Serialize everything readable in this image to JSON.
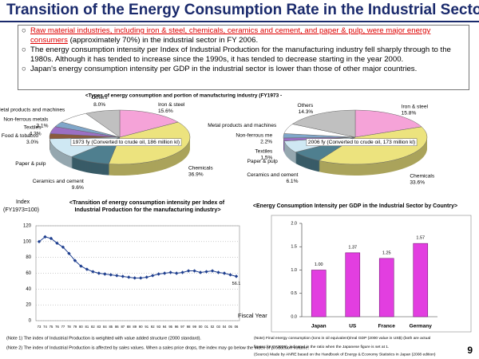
{
  "title": "Transition of the Energy Consumption Rate in the Industrial Sector",
  "bullets": [
    {
      "highlight": "Raw material industries, including iron & steel, chemicals, ceramics and cement, and paper & pulp, were major energy consumers",
      "text": " (approximately 70%) in the industrial sector in FY 2006."
    },
    {
      "text": "The energy consumption intensity per Index of Industrial Production for the manufacturing industry fell sharply through to the 1980s. Although it has tended to increase since the 1990s, it has tended to decrease starting in the year 2000."
    },
    {
      "text": "Japan's energy consumption intensity per GDP in the industrial sector is lower than those of other major countries."
    }
  ],
  "chart_data": [
    {
      "type": "pie",
      "title": "<Types of energy consumption and portion of manufacturing industry (FY1973 -",
      "center_label": "1973 fy (Converted to crude oil, 186 million kl)",
      "categories": [
        "Iron & steel",
        "Chemicals",
        "Ceramics and cement",
        "Paper & pulp",
        "Food & tobacco",
        "Textiles",
        "Non-ferrous metals",
        "Metal products and machines",
        "Others"
      ],
      "values": [
        15.6,
        36.9,
        9.6,
        12.0,
        3.0,
        4.3,
        3.1,
        7.5,
        8.0
      ],
      "value_labels": [
        "15.6%",
        "36.9%",
        "9.6%",
        null,
        "3.0%",
        "4.3%",
        "3.1%",
        null,
        "8.0%"
      ],
      "colors": [
        "#f5a3d8",
        "#ece37e",
        "#4f7f8f",
        "#cfe8f3",
        "#8a5a3c",
        "#9b6fc4",
        "#7fa6c9",
        "#ffffff",
        "#c0c0c0"
      ]
    },
    {
      "type": "pie",
      "center_label": "2006 fy (Converted to crude oil, 173 million kl)",
      "categories": [
        "Iron & steel",
        "Chemicals",
        "Ceramics and cement",
        "Paper & pulp",
        "Textiles",
        "Non-ferrous me",
        "Metal products and machines",
        "Others"
      ],
      "values": [
        15.8,
        33.6,
        6.1,
        6.0,
        1.5,
        2.2,
        5.0,
        14.3
      ],
      "value_labels": [
        "15.8%",
        "33.6%",
        "6.1%",
        null,
        "1.5%",
        "2.2%",
        null,
        "14.3%"
      ],
      "colors": [
        "#f5a3d8",
        "#ece37e",
        "#4f7f8f",
        "#cfe8f3",
        "#9b6fc4",
        "#7fa6c9",
        "#ffffff",
        "#c0c0c0"
      ]
    },
    {
      "type": "line",
      "title": "<Transition of energy consumption intensity per Index of Industrial Production for the manufacturing industry>",
      "y_label": "Index (FY1973=100)",
      "x_label": "Fiscal Year",
      "categories": [
        "73",
        "74",
        "75",
        "76",
        "77",
        "78",
        "79",
        "80",
        "81",
        "82",
        "83",
        "84",
        "85",
        "86",
        "87",
        "88",
        "89",
        "90",
        "91",
        "92",
        "93",
        "94",
        "95",
        "96",
        "97",
        "98",
        "99",
        "00",
        "01",
        "02",
        "03",
        "04",
        "05",
        "06"
      ],
      "values": [
        100,
        106,
        104,
        98,
        93,
        85,
        76,
        69,
        65,
        62,
        60,
        59,
        58,
        57,
        56,
        55,
        54,
        54,
        55,
        57,
        59,
        60,
        61,
        60,
        61,
        63,
        63,
        61,
        62,
        63,
        61,
        60,
        58,
        56.1
      ],
      "color": "#1f3f8f",
      "ylim": [
        0,
        120
      ],
      "yticks": [
        0,
        20,
        40,
        60,
        80,
        100,
        120
      ],
      "grid": true,
      "notes": [
        "(Note 1) The index of Industrial Production is weighted with value added structure (2000 standard).",
        "(Note 2) The index of Industrial Production is affected by sales values. When a sales price drops, the index may go below the index of production volume."
      ]
    },
    {
      "type": "bar",
      "title": "<Energy Consumption Intensity per GDP in the Industrial Sector by Country>",
      "categories": [
        "Japan",
        "US",
        "France",
        "Germany"
      ],
      "values": [
        1.0,
        1.37,
        1.25,
        1.57
      ],
      "value_labels": [
        "1.00",
        "1.37",
        "1.25",
        "1.57"
      ],
      "color": "#e23ee0",
      "ylim": [
        0,
        2.0
      ],
      "yticks": [
        {
          "value": 0,
          "label": "0.0"
        },
        {
          "value": 0.5,
          "label": "0.5"
        },
        {
          "value": 1.0,
          "label": "1.0"
        },
        {
          "value": 1.5,
          "label": "1.5"
        },
        {
          "value": 2.0,
          "label": "2.0"
        }
      ],
      "grid": false,
      "notes": [
        "(Note) Final energy consumption (tons in oil equivalent)/real GDP (2000 value in US$) (both are actual figures for FY2005), indicated in the ratio when the Japanese figure is set at 1.",
        "(Source) Made by ANRE based on the Handbook of Energy & Economy Statistics in Japan (2008 edition)"
      ]
    }
  ],
  "page_number": "9"
}
